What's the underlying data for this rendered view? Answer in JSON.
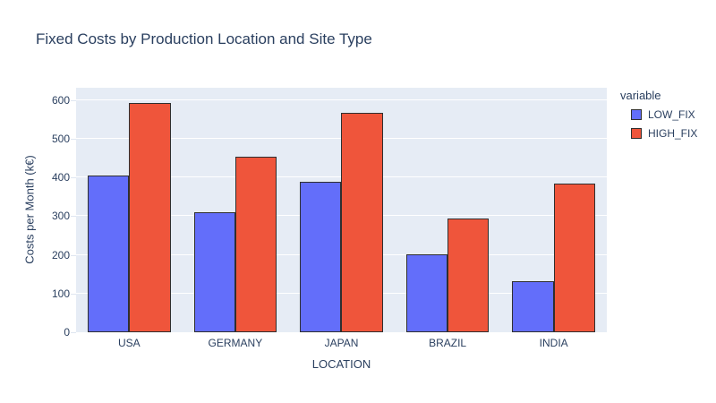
{
  "chart_data": {
    "type": "bar",
    "title": "Fixed Costs by Production Location and Site Type",
    "categories": [
      "USA",
      "GERMANY",
      "JAPAN",
      "BRAZIL",
      "INDIA"
    ],
    "series": [
      {
        "name": "LOW_FIX",
        "color": "#636EFA",
        "values": [
          405,
          310,
          389,
          201,
          131
        ]
      },
      {
        "name": "HIGH_FIX",
        "color": "#EF553B",
        "values": [
          592,
          453,
          567,
          295,
          384
        ]
      }
    ],
    "xlabel": "LOCATION",
    "ylabel": "Costs per Month (k€)",
    "yticks": [
      0,
      100,
      200,
      300,
      400,
      500,
      600
    ],
    "ylim": [
      0,
      632
    ],
    "grid": true,
    "legend_title": "variable",
    "legend_position": "right",
    "colors": {
      "plot_background": "#E6ECF5",
      "gridline": "#FFFFFF",
      "bar_border": "#2F2F2F",
      "text": "#2A3F5F"
    }
  }
}
